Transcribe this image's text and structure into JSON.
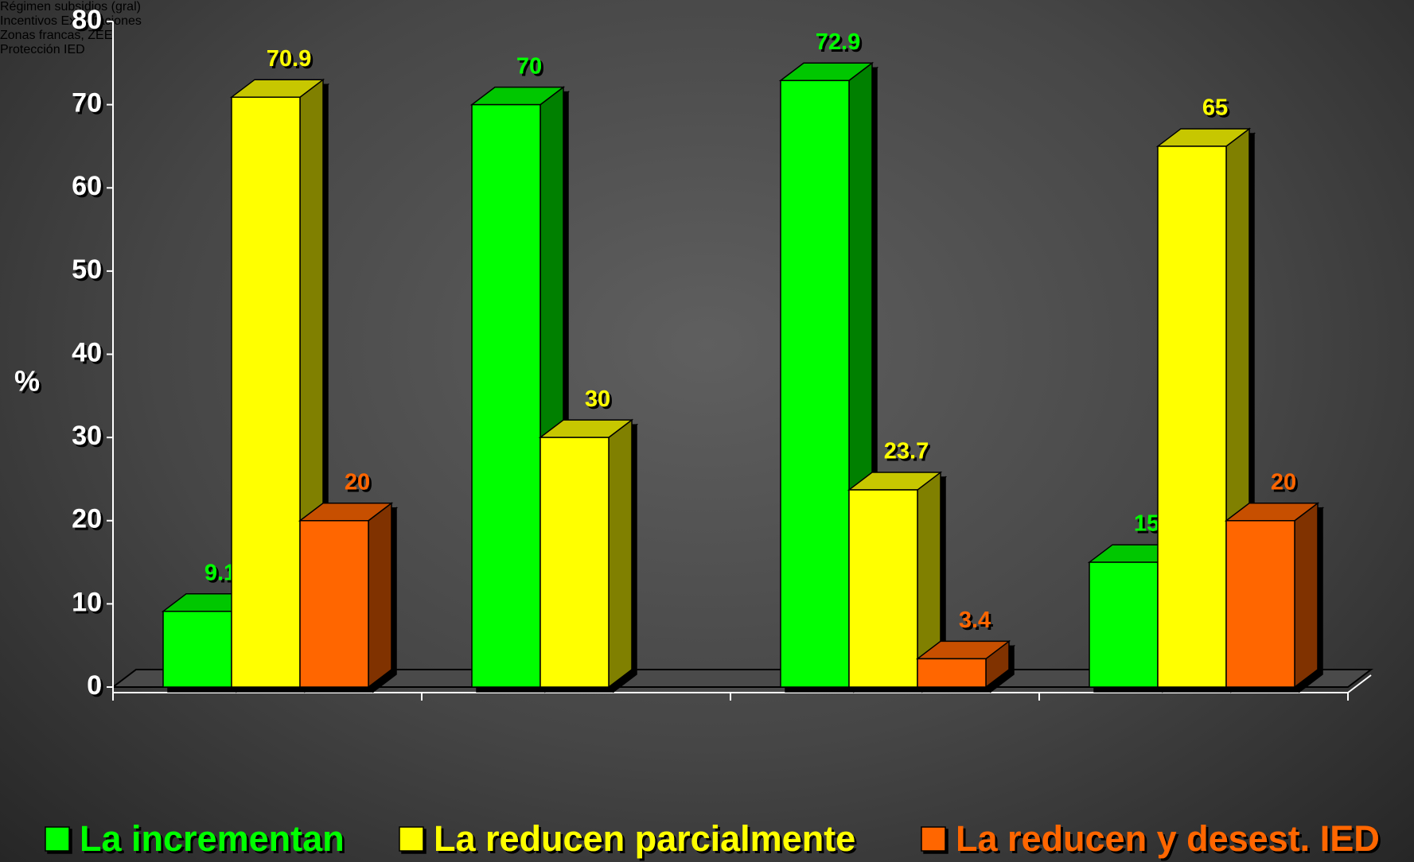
{
  "chart_data": {
    "type": "bar3d",
    "y_label": "%",
    "categories": [
      "Régimen subsidios (gral)",
      "Incentivos Exportaciones",
      "Zonas francas, ZEE",
      "Protección IED"
    ],
    "series": [
      {
        "name": "La incrementan",
        "color": "#00ff00",
        "values": [
          9.1,
          70,
          72.9,
          15
        ]
      },
      {
        "name": "La reducen parcialmente",
        "color": "#ffff00",
        "values": [
          70.9,
          30,
          23.7,
          65
        ]
      },
      {
        "name": "La reducen y desest. IED",
        "color": "#ff6600",
        "values": [
          20,
          null,
          3.4,
          20
        ]
      }
    ],
    "ylim": [
      0,
      80
    ],
    "yticks": [
      0,
      10,
      20,
      30,
      40,
      50,
      60,
      70,
      80
    ],
    "grid": false,
    "legend": "bottom"
  }
}
